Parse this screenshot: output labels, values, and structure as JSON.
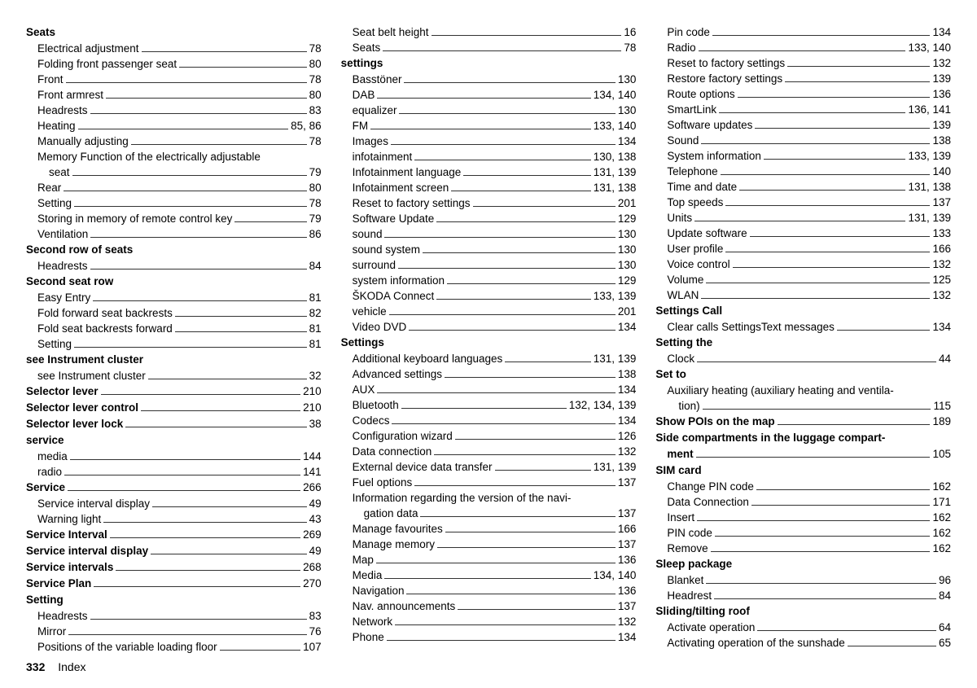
{
  "footer": {
    "page": "332",
    "label": "Index"
  },
  "columns": [
    [
      {
        "type": "heading",
        "label": "Seats"
      },
      {
        "type": "entry",
        "label": "Electrical adjustment",
        "page": "78"
      },
      {
        "type": "entry",
        "label": "Folding front passenger seat",
        "page": "80"
      },
      {
        "type": "entry",
        "label": "Front",
        "page": "78"
      },
      {
        "type": "entry",
        "label": "Front armrest",
        "page": "80"
      },
      {
        "type": "entry",
        "label": "Headrests",
        "page": "83"
      },
      {
        "type": "entry",
        "label": "Heating",
        "page": "85, 86"
      },
      {
        "type": "entry",
        "label": "Manually adjusting",
        "page": "78"
      },
      {
        "type": "entry",
        "label": "Memory Function of the electrically adjustable",
        "wrap": "start"
      },
      {
        "type": "entry",
        "label": "seat",
        "page": "79",
        "wrap": "cont"
      },
      {
        "type": "entry",
        "label": "Rear",
        "page": "80"
      },
      {
        "type": "entry",
        "label": "Setting",
        "page": "78"
      },
      {
        "type": "entry",
        "label": "Storing in memory of remote control key",
        "page": "79"
      },
      {
        "type": "entry",
        "label": "Ventilation",
        "page": "86"
      },
      {
        "type": "heading",
        "label": "Second row of seats"
      },
      {
        "type": "entry",
        "label": "Headrests",
        "page": "84"
      },
      {
        "type": "heading",
        "label": "Second seat row"
      },
      {
        "type": "entry",
        "label": "Easy Entry",
        "page": "81"
      },
      {
        "type": "entry",
        "label": "Fold forward seat backrests",
        "page": "82"
      },
      {
        "type": "entry",
        "label": "Fold seat backrests forward",
        "page": "81"
      },
      {
        "type": "entry",
        "label": "Setting",
        "page": "81"
      },
      {
        "type": "heading",
        "label": "see Instrument cluster"
      },
      {
        "type": "entry",
        "label": "see Instrument cluster",
        "page": "32"
      },
      {
        "type": "heading",
        "label": "Selector lever",
        "page": "210"
      },
      {
        "type": "heading",
        "label": "Selector lever control",
        "page": "210"
      },
      {
        "type": "heading",
        "label": "Selector lever lock",
        "page": "38"
      },
      {
        "type": "heading",
        "label": "service"
      },
      {
        "type": "entry",
        "label": "media",
        "page": "144"
      },
      {
        "type": "entry",
        "label": "radio",
        "page": "141"
      },
      {
        "type": "heading",
        "label": "Service",
        "page": "266"
      },
      {
        "type": "entry",
        "label": "Service interval display",
        "page": "49"
      },
      {
        "type": "entry",
        "label": "Warning light",
        "page": "43"
      },
      {
        "type": "heading",
        "label": "Service Interval",
        "page": "269"
      },
      {
        "type": "heading",
        "label": "Service interval display",
        "page": "49"
      },
      {
        "type": "heading",
        "label": "Service intervals",
        "page": "268"
      },
      {
        "type": "heading",
        "label": "Service Plan",
        "page": "270"
      },
      {
        "type": "heading",
        "label": "Setting"
      },
      {
        "type": "entry",
        "label": "Headrests",
        "page": "83"
      },
      {
        "type": "entry",
        "label": "Mirror",
        "page": "76"
      },
      {
        "type": "entry",
        "label": "Positions of the variable loading floor",
        "page": "107"
      }
    ],
    [
      {
        "type": "entry",
        "label": "Seat belt height",
        "page": "16"
      },
      {
        "type": "entry",
        "label": "Seats",
        "page": "78"
      },
      {
        "type": "heading",
        "label": "settings"
      },
      {
        "type": "entry",
        "label": "Basstöner",
        "page": "130"
      },
      {
        "type": "entry",
        "label": "DAB",
        "page": "134, 140"
      },
      {
        "type": "entry",
        "label": "equalizer",
        "page": "130"
      },
      {
        "type": "entry",
        "label": "FM",
        "page": "133, 140"
      },
      {
        "type": "entry",
        "label": "Images",
        "page": "134"
      },
      {
        "type": "entry",
        "label": "infotainment",
        "page": "130, 138"
      },
      {
        "type": "entry",
        "label": "Infotainment language",
        "page": "131, 139"
      },
      {
        "type": "entry",
        "label": "Infotainment screen",
        "page": "131, 138"
      },
      {
        "type": "entry",
        "label": "Reset to factory settings",
        "page": "201"
      },
      {
        "type": "entry",
        "label": "Software Update",
        "page": "129"
      },
      {
        "type": "entry",
        "label": "sound",
        "page": "130"
      },
      {
        "type": "entry",
        "label": "sound system",
        "page": "130"
      },
      {
        "type": "entry",
        "label": "surround",
        "page": "130"
      },
      {
        "type": "entry",
        "label": "system information",
        "page": "129"
      },
      {
        "type": "entry",
        "label": "ŠKODA Connect",
        "page": "133, 139"
      },
      {
        "type": "entry",
        "label": "vehicle",
        "page": "201"
      },
      {
        "type": "entry",
        "label": "Video DVD",
        "page": "134"
      },
      {
        "type": "heading",
        "label": "Settings"
      },
      {
        "type": "entry",
        "label": "Additional keyboard languages",
        "page": "131, 139"
      },
      {
        "type": "entry",
        "label": "Advanced settings",
        "page": "138"
      },
      {
        "type": "entry",
        "label": "AUX",
        "page": "134"
      },
      {
        "type": "entry",
        "label": "Bluetooth",
        "page": "132, 134, 139"
      },
      {
        "type": "entry",
        "label": "Codecs",
        "page": "134"
      },
      {
        "type": "entry",
        "label": "Configuration wizard",
        "page": "126"
      },
      {
        "type": "entry",
        "label": "Data connection",
        "page": "132"
      },
      {
        "type": "entry",
        "label": "External device data transfer",
        "page": "131, 139"
      },
      {
        "type": "entry",
        "label": "Fuel options",
        "page": "137"
      },
      {
        "type": "entry",
        "label": "Information regarding the version of the navi-",
        "wrap": "start"
      },
      {
        "type": "entry",
        "label": "gation data",
        "page": "137",
        "wrap": "cont"
      },
      {
        "type": "entry",
        "label": "Manage favourites",
        "page": "166"
      },
      {
        "type": "entry",
        "label": "Manage memory",
        "page": "137"
      },
      {
        "type": "entry",
        "label": "Map",
        "page": "136"
      },
      {
        "type": "entry",
        "label": "Media",
        "page": "134, 140"
      },
      {
        "type": "entry",
        "label": "Navigation",
        "page": "136"
      },
      {
        "type": "entry",
        "label": "Nav. announcements",
        "page": "137"
      },
      {
        "type": "entry",
        "label": "Network",
        "page": "132"
      },
      {
        "type": "entry",
        "label": "Phone",
        "page": "134"
      }
    ],
    [
      {
        "type": "entry",
        "label": "Pin code",
        "page": "134"
      },
      {
        "type": "entry",
        "label": "Radio",
        "page": "133, 140"
      },
      {
        "type": "entry",
        "label": "Reset to factory settings",
        "page": "132"
      },
      {
        "type": "entry",
        "label": "Restore factory settings",
        "page": "139"
      },
      {
        "type": "entry",
        "label": "Route options",
        "page": "136"
      },
      {
        "type": "entry",
        "label": "SmartLink",
        "page": "136, 141"
      },
      {
        "type": "entry",
        "label": "Software updates",
        "page": "139"
      },
      {
        "type": "entry",
        "label": "Sound",
        "page": "138"
      },
      {
        "type": "entry",
        "label": "System information",
        "page": "133, 139"
      },
      {
        "type": "entry",
        "label": "Telephone",
        "page": "140"
      },
      {
        "type": "entry",
        "label": "Time and date",
        "page": "131, 138"
      },
      {
        "type": "entry",
        "label": "Top speeds",
        "page": "137"
      },
      {
        "type": "entry",
        "label": "Units",
        "page": "131, 139"
      },
      {
        "type": "entry",
        "label": "Update software",
        "page": "133"
      },
      {
        "type": "entry",
        "label": "User profile",
        "page": "166"
      },
      {
        "type": "entry",
        "label": "Voice control",
        "page": "132"
      },
      {
        "type": "entry",
        "label": "Volume",
        "page": "125"
      },
      {
        "type": "entry",
        "label": "WLAN",
        "page": "132"
      },
      {
        "type": "heading",
        "label": "Settings Call"
      },
      {
        "type": "entry",
        "label": "Clear calls SettingsText messages",
        "page": "134"
      },
      {
        "type": "heading",
        "label": "Setting the"
      },
      {
        "type": "entry",
        "label": "Clock",
        "page": "44"
      },
      {
        "type": "heading",
        "label": "Set to"
      },
      {
        "type": "entry",
        "label": "Auxiliary heating (auxiliary heating and ventila-",
        "wrap": "start"
      },
      {
        "type": "entry",
        "label": "tion)",
        "page": "115",
        "wrap": "cont"
      },
      {
        "type": "heading",
        "label": "Show POIs on the map",
        "page": "189"
      },
      {
        "type": "heading",
        "label": "Side compartments in the luggage compart-",
        "wrap": "start"
      },
      {
        "type": "heading",
        "label": "ment",
        "page": "105",
        "wrap": "cont"
      },
      {
        "type": "heading",
        "label": "SIM card"
      },
      {
        "type": "entry",
        "label": "Change PIN code",
        "page": "162"
      },
      {
        "type": "entry",
        "label": "Data Connection",
        "page": "171"
      },
      {
        "type": "entry",
        "label": "Insert",
        "page": "162"
      },
      {
        "type": "entry",
        "label": "PIN code",
        "page": "162"
      },
      {
        "type": "entry",
        "label": "Remove",
        "page": "162"
      },
      {
        "type": "heading",
        "label": "Sleep package"
      },
      {
        "type": "entry",
        "label": "Blanket",
        "page": "96"
      },
      {
        "type": "entry",
        "label": "Headrest",
        "page": "84"
      },
      {
        "type": "heading",
        "label": "Sliding/tilting roof"
      },
      {
        "type": "entry",
        "label": "Activate operation",
        "page": "64"
      },
      {
        "type": "entry",
        "label": "Activating operation of the sunshade",
        "page": "65"
      }
    ]
  ]
}
